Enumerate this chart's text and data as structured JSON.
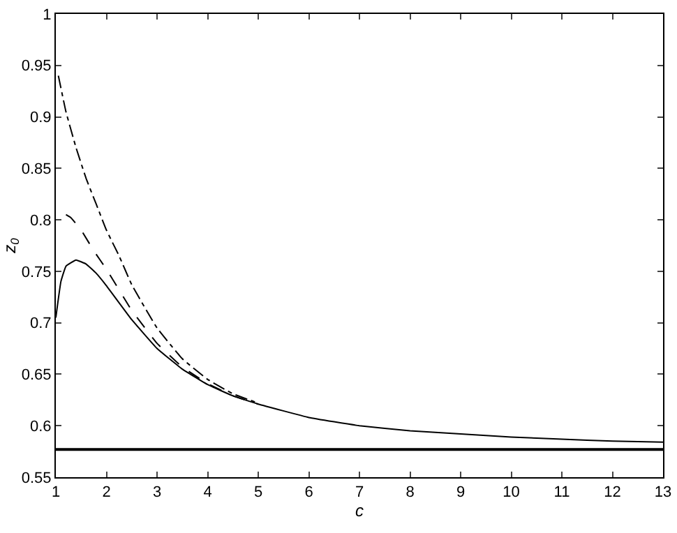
{
  "chart_data": {
    "type": "line",
    "xlabel": "c",
    "ylabel": "z$_{0}$",
    "xlim": [
      1,
      13
    ],
    "ylim": [
      0.55,
      1
    ],
    "xticks": [
      1,
      2,
      3,
      4,
      5,
      6,
      7,
      8,
      9,
      10,
      11,
      12,
      13
    ],
    "yticks": [
      0.55,
      0.6,
      0.65,
      0.7,
      0.75,
      0.8,
      0.85,
      0.9,
      0.95,
      1
    ],
    "grid": false,
    "marker": "none",
    "series": [
      {
        "color": "#000000",
        "line_style": "solid",
        "x": [
          1,
          1.1,
          1.2,
          1.4,
          1.6,
          1.8,
          2,
          2.5,
          3,
          3.5,
          4,
          4.5,
          5,
          6,
          7,
          8,
          9,
          10,
          11,
          12,
          13
        ],
        "values": [
          0.705,
          0.74,
          0.755,
          0.761,
          0.757,
          0.748,
          0.736,
          0.703,
          0.675,
          0.655,
          0.64,
          0.629,
          0.621,
          0.608,
          0.6,
          0.595,
          0.592,
          0.589,
          0.587,
          0.585,
          0.584
        ]
      },
      {
        "color": "#000000",
        "line_style": "dashed",
        "x": [
          1.2,
          1.3,
          1.5,
          1.75,
          2,
          2.5,
          3,
          3.5,
          4,
          4.5,
          5
        ],
        "values": [
          0.805,
          0.802,
          0.79,
          0.77,
          0.752,
          0.712,
          0.68,
          0.657,
          0.641,
          0.629,
          0.621
        ]
      },
      {
        "color": "#000000",
        "line_style": "dashdot",
        "x": [
          1.05,
          1.2,
          1.4,
          1.6,
          1.8,
          2,
          2.25,
          2.5,
          3,
          3.5,
          4,
          4.5,
          5
        ],
        "values": [
          0.94,
          0.905,
          0.87,
          0.84,
          0.815,
          0.79,
          0.765,
          0.737,
          0.695,
          0.665,
          0.645,
          0.631,
          0.622
        ]
      }
    ],
    "ref_lines": [
      {
        "axis": "y",
        "value": 0.577,
        "color": "#000000",
        "line_style": "solid"
      }
    ]
  }
}
